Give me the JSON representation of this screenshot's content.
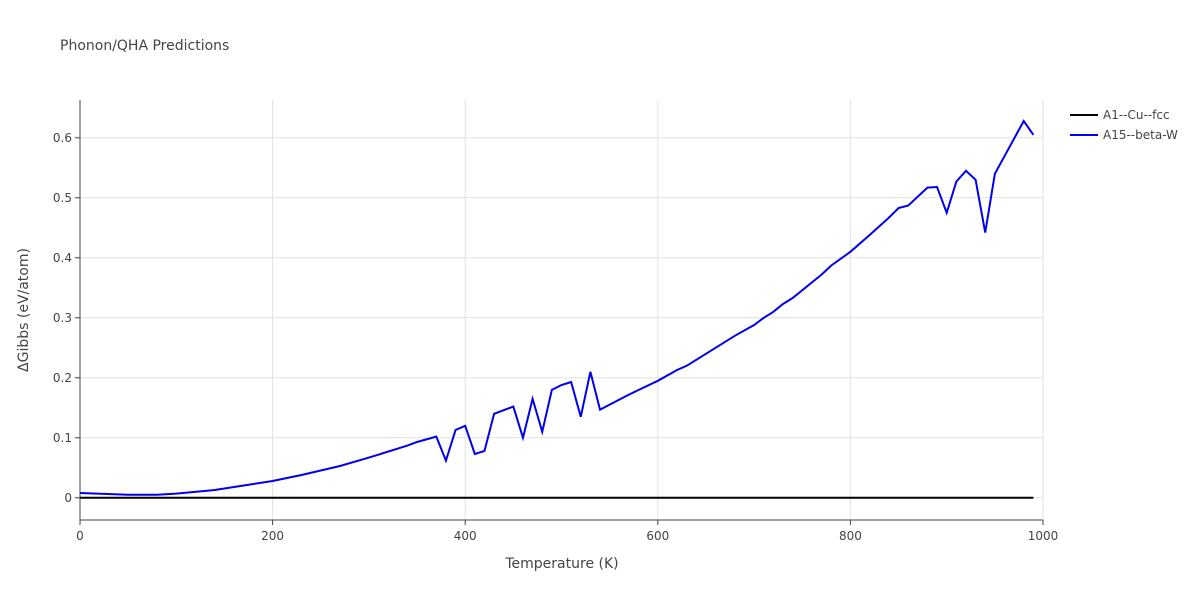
{
  "chart_data": {
    "type": "line",
    "title": "Phonon/QHA Predictions",
    "x_label": "Temperature (K)",
    "y_label": "ΔGibbs (eV/atom)",
    "xlim": [
      0,
      1000
    ],
    "ylim": [
      -0.037,
      0.663
    ],
    "xticks": [
      0,
      200,
      400,
      600,
      800,
      1000
    ],
    "yticks": [
      0,
      0.1,
      0.2,
      0.3,
      0.4,
      0.5,
      0.6
    ],
    "grid": true,
    "legend": "outside-right",
    "series": [
      {
        "name": "A1--Cu--fcc",
        "color": "#000000",
        "x": [
          0,
          990
        ],
        "values": [
          0,
          0
        ]
      },
      {
        "name": "A15--beta-W",
        "color": "#0000ee",
        "x": [
          0,
          50,
          80,
          100,
          140,
          180,
          200,
          230,
          270,
          300,
          340,
          350,
          370,
          380,
          390,
          400,
          410,
          420,
          430,
          450,
          460,
          470,
          480,
          490,
          500,
          510,
          520,
          530,
          540,
          570,
          600,
          620,
          630,
          660,
          680,
          700,
          710,
          720,
          730,
          740,
          770,
          780,
          800,
          820,
          840,
          850,
          860,
          880,
          890,
          900,
          910,
          920,
          930,
          940,
          950,
          980,
          990
        ],
        "values": [
          0.008,
          0.005,
          0.005,
          0.007,
          0.013,
          0.023,
          0.028,
          0.038,
          0.053,
          0.067,
          0.087,
          0.093,
          0.102,
          0.062,
          0.113,
          0.12,
          0.073,
          0.078,
          0.14,
          0.152,
          0.1,
          0.165,
          0.11,
          0.18,
          0.188,
          0.193,
          0.135,
          0.21,
          0.147,
          0.172,
          0.195,
          0.213,
          0.22,
          0.25,
          0.27,
          0.288,
          0.3,
          0.31,
          0.323,
          0.333,
          0.372,
          0.387,
          0.41,
          0.438,
          0.467,
          0.483,
          0.487,
          0.517,
          0.518,
          0.475,
          0.527,
          0.545,
          0.53,
          0.442,
          0.54,
          0.628,
          0.605
        ]
      }
    ]
  }
}
